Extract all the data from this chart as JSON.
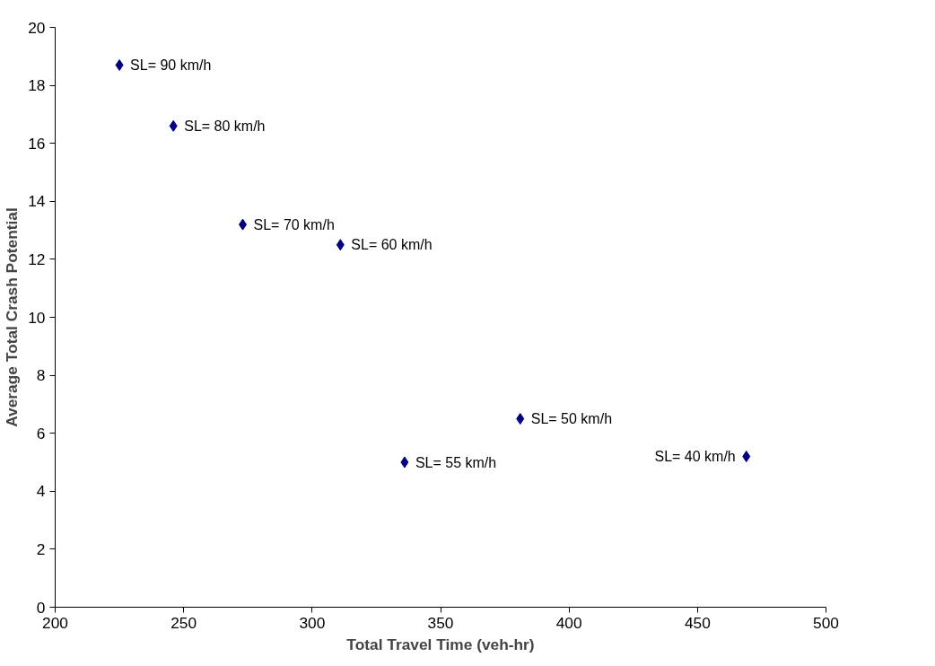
{
  "chart_data": {
    "type": "scatter",
    "xlabel": "Total Travel Time (veh-hr)",
    "ylabel": "Average Total Crash Potential",
    "x": [
      225,
      246,
      273,
      311,
      336,
      381,
      469
    ],
    "series": [
      {
        "color": "#000080",
        "values": [
          18.7,
          16.6,
          13.2,
          12.5,
          5.0,
          6.5,
          5.2
        ]
      }
    ],
    "annotations": [
      {
        "text": "SL= 90 km/h",
        "x": 225,
        "y": 18.7
      },
      {
        "text": "SL= 80 km/h",
        "x": 246,
        "y": 16.6
      },
      {
        "text": "SL= 70 km/h",
        "x": 273,
        "y": 13.2
      },
      {
        "text": "SL= 60 km/h",
        "x": 311,
        "y": 12.5
      },
      {
        "text": "SL= 55 km/h",
        "x": 336,
        "y": 5.0
      },
      {
        "text": "SL= 50 km/h",
        "x": 381,
        "y": 6.5
      },
      {
        "text": "SL= 40 km/h",
        "x": 469,
        "y": 5.2
      }
    ],
    "xlim": [
      200,
      500
    ],
    "ylim": [
      0,
      20
    ],
    "xticks": [
      200,
      250,
      300,
      350,
      400,
      450,
      500
    ],
    "yticks": [
      0,
      2,
      4,
      6,
      8,
      10,
      12,
      14,
      16,
      18,
      20
    ],
    "marker": "diamond",
    "grid": false
  }
}
